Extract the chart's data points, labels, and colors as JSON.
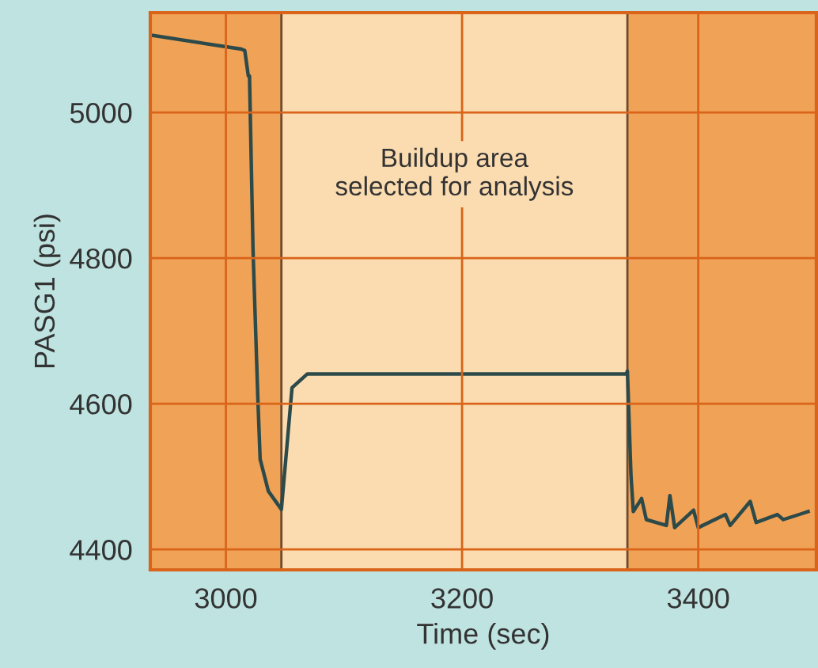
{
  "chart_data": {
    "type": "line",
    "xlabel": "Time (sec)",
    "ylabel": "PASG1 (psi)",
    "xlim": [
      2936,
      3500
    ],
    "xticks": [
      3000,
      3200,
      3400
    ],
    "ylim": [
      4372,
      5137
    ],
    "yticks": [
      4400,
      4600,
      4800,
      5000
    ],
    "grid": true,
    "bands": [
      {
        "axis": "x",
        "from": 2936,
        "to": 3047,
        "color": "#f0a256"
      },
      {
        "axis": "x",
        "from": 3047,
        "to": 3340,
        "label": "Buildup area\nselected for analysis",
        "color": "#fbdcb0"
      },
      {
        "axis": "x",
        "from": 3340,
        "to": 3500,
        "color": "#f0a256"
      }
    ],
    "series": [
      {
        "color": "#2c4a4a",
        "x": [
          2937,
          3013,
          3016,
          3019,
          3020,
          3023,
          3027,
          3029,
          3036,
          3047,
          3056,
          3069,
          3200,
          3339,
          3340,
          3343,
          3345,
          3352,
          3356,
          3373,
          3376,
          3380,
          3396,
          3400,
          3423,
          3427,
          3444,
          3449,
          3467,
          3472,
          3493
        ],
        "values": [
          5106,
          5087,
          5085,
          5050,
          5050,
          4810,
          4610,
          4524,
          4480,
          4455,
          4622,
          4641,
          4641,
          4641,
          4645,
          4502,
          4452,
          4470,
          4441,
          4433,
          4474,
          4430,
          4454,
          4430,
          4448,
          4433,
          4466,
          4437,
          4448,
          4441,
          4452
        ]
      }
    ]
  }
}
